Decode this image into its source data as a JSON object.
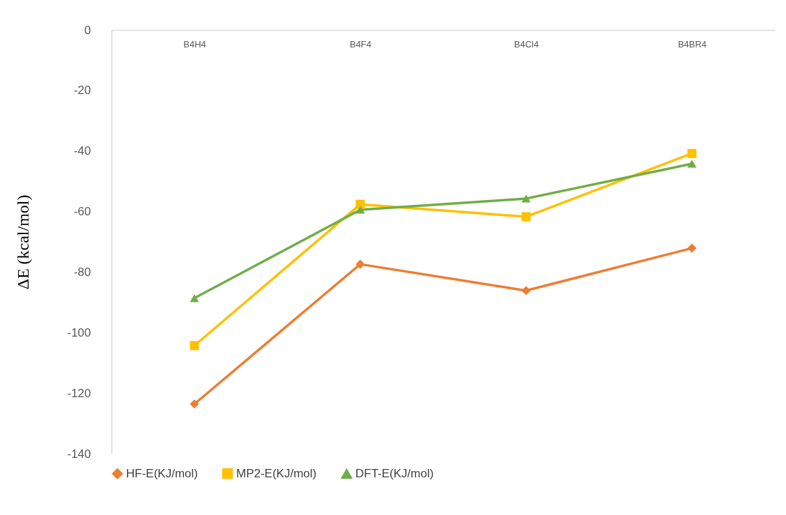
{
  "chart_data": {
    "type": "line",
    "ylabel": "ΔE (kcal/mol)",
    "categories": [
      "B4H4",
      "B4F4",
      "B4Cl4",
      "B4BR4"
    ],
    "series": [
      {
        "name": "HF-E(KJ/mol)",
        "color": "#ed7d31",
        "marker": "diamond",
        "values": [
          -123.6,
          -77.4,
          -86.1,
          -72.1
        ]
      },
      {
        "name": "MP2-E(KJ/mol)",
        "color": "#ffc000",
        "marker": "square",
        "values": [
          -104.3,
          -57.6,
          -61.7,
          -40.8
        ]
      },
      {
        "name": "DFT-E(KJ/mol)",
        "color": "#70ad47",
        "marker": "triangle",
        "values": [
          -88.6,
          -59.4,
          -55.7,
          -44.2
        ]
      }
    ],
    "ylim": [
      -140,
      0
    ],
    "yticks": [
      -140,
      -120,
      -100,
      -80,
      -60,
      -40,
      -20,
      0
    ],
    "grid": false,
    "legend": "bottom",
    "line_style": "solid"
  }
}
